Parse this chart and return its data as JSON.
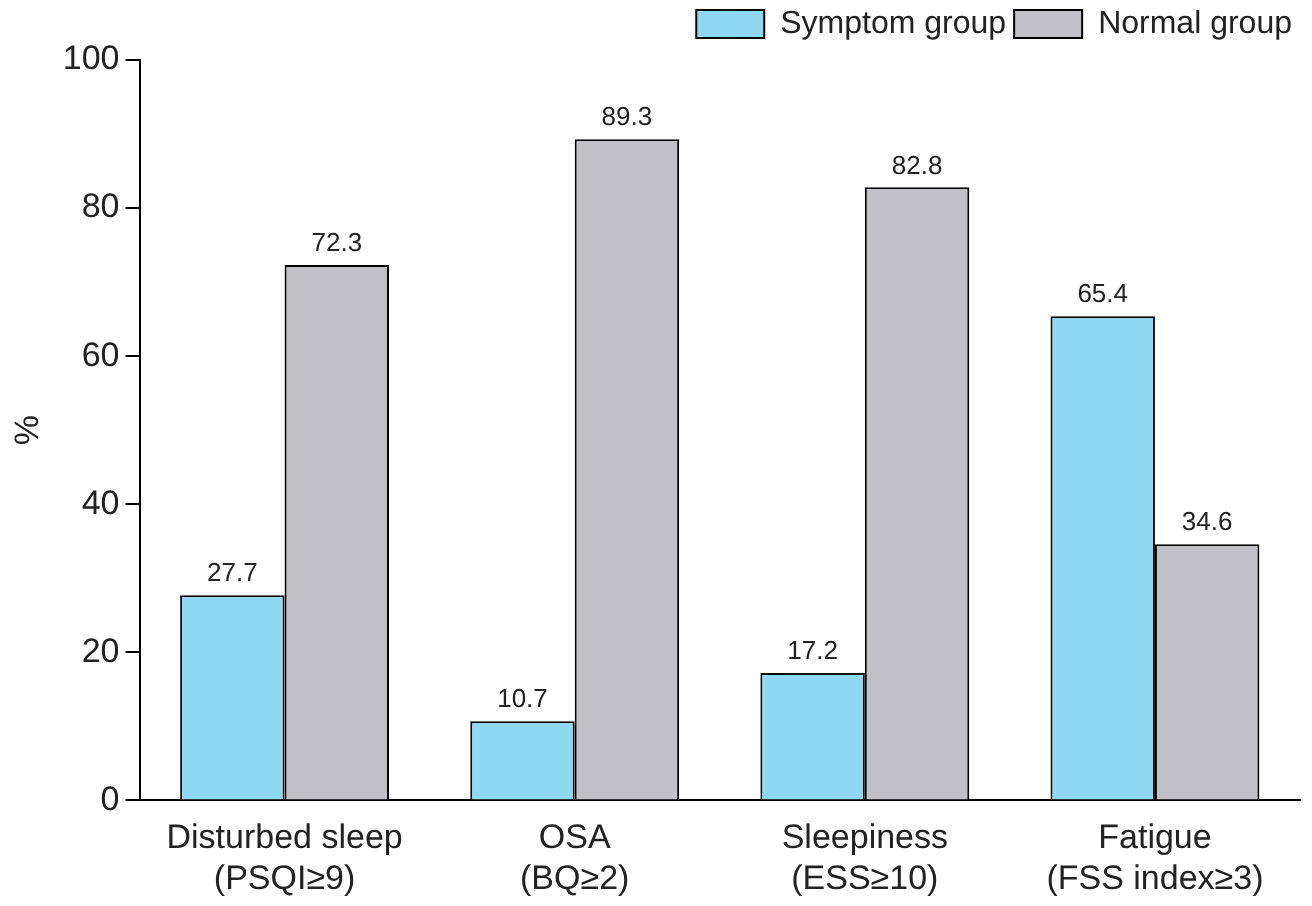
{
  "chart_data": {
    "type": "bar",
    "categories": [
      "Disturbed sleep\n(PSQI≥9)",
      "OSA\n(BQ≥2)",
      "Sleepiness\n(ESS≥10)",
      "Fatigue\n(FSS index≥3)"
    ],
    "series": [
      {
        "name": "Symptom group",
        "color": "#8fd8f2",
        "values": [
          27.7,
          10.7,
          17.2,
          65.4
        ]
      },
      {
        "name": "Normal group",
        "color": "#c1c1c5",
        "values": [
          72.3,
          89.3,
          82.8,
          34.6
        ]
      }
    ],
    "ylabel": "%",
    "ylim": [
      0,
      100
    ],
    "yticks": [
      0,
      20,
      40,
      60,
      80,
      100
    ],
    "grid": false,
    "legend": "top right",
    "data_labels": true
  }
}
